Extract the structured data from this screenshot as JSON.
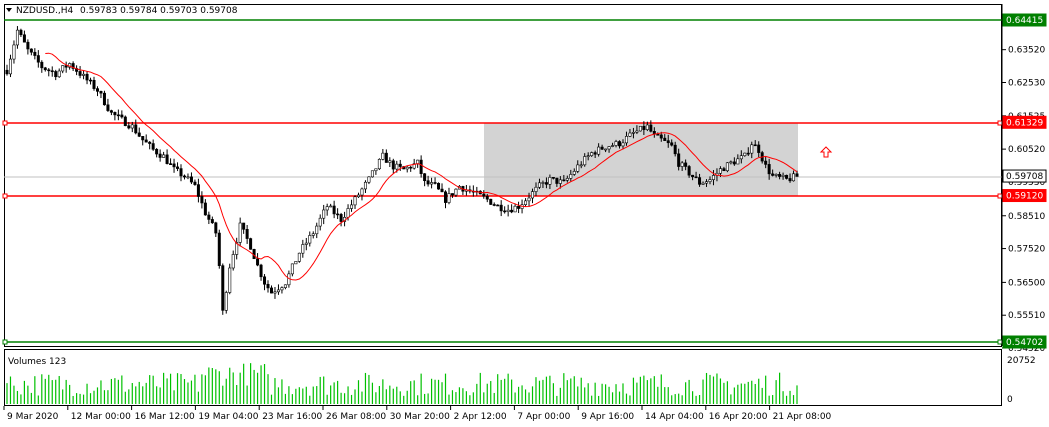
{
  "header": {
    "title": "NZDUSD.,H4",
    "quotes": "0.59783 0.59784 0.59703 0.59708"
  },
  "volumes_panel": {
    "title": "Volumes 123",
    "scale_top": "20752",
    "scale_bottom": "0"
  },
  "price_axis": {
    "ticks": [
      "0.63520",
      "0.62530",
      "0.61525",
      "0.60520",
      "0.59530",
      "0.58510",
      "0.57520",
      "0.56500",
      "0.55510",
      "0.54520"
    ]
  },
  "price_tags": [
    {
      "name": "tag-support-low",
      "value": "0.54702",
      "color": "#008000"
    },
    {
      "name": "tag-resistance-high",
      "value": "0.64415",
      "color": "#008000"
    },
    {
      "name": "tag-range-top",
      "value": "0.61329",
      "color": "#ff0000"
    },
    {
      "name": "tag-range-bottom",
      "value": "0.59120",
      "color": "#ff0000"
    },
    {
      "name": "tag-current-price",
      "value": "0.59708",
      "color": "#ffffff"
    }
  ],
  "time_axis": {
    "ticks": [
      "9 Mar 2020",
      "12 Mar 00:00",
      "16 Mar 12:00",
      "19 Mar 04:00",
      "23 Mar 16:00",
      "26 Mar 08:00",
      "30 Mar 20:00",
      "2 Apr 12:00",
      "7 Apr 00:00",
      "9 Apr 16:00",
      "14 Apr 04:00",
      "16 Apr 20:00",
      "21 Apr 08:00"
    ]
  },
  "colors": {
    "support_lines": "#008000",
    "range_lines": "#ff0000",
    "moving_average": "#ff0000",
    "range_box": "#d3d3d3",
    "candles": "#000000",
    "volumes": "#00c000",
    "arrow": "#ff0000"
  },
  "chart_data": {
    "type": "candlestick",
    "symbol": "NZDUSD.",
    "timeframe": "H4",
    "horizontal_levels": [
      0.64415,
      0.61329,
      0.5912,
      0.54702
    ],
    "current_price": 0.59708,
    "close_path": [
      [
        0,
        0.629
      ],
      [
        3,
        0.641
      ],
      [
        6,
        0.635
      ],
      [
        10,
        0.63
      ],
      [
        14,
        0.628
      ],
      [
        18,
        0.631
      ],
      [
        22,
        0.627
      ],
      [
        26,
        0.623
      ],
      [
        30,
        0.616
      ],
      [
        33,
        0.614
      ],
      [
        36,
        0.612
      ],
      [
        39,
        0.608
      ],
      [
        42,
        0.605
      ],
      [
        45,
        0.603
      ],
      [
        48,
        0.599
      ],
      [
        51,
        0.597
      ],
      [
        54,
        0.594
      ],
      [
        57,
        0.586
      ],
      [
        60,
        0.58
      ],
      [
        61,
        0.57
      ],
      [
        62,
        0.556
      ],
      [
        64,
        0.57
      ],
      [
        67,
        0.582
      ],
      [
        70,
        0.576
      ],
      [
        72,
        0.57
      ],
      [
        74,
        0.565
      ],
      [
        76,
        0.562
      ],
      [
        80,
        0.565
      ],
      [
        84,
        0.574
      ],
      [
        88,
        0.58
      ],
      [
        92,
        0.588
      ],
      [
        96,
        0.584
      ],
      [
        100,
        0.59
      ],
      [
        104,
        0.596
      ],
      [
        108,
        0.603
      ],
      [
        111,
        0.6
      ],
      [
        114,
        0.599
      ],
      [
        118,
        0.601
      ],
      [
        120,
        0.595
      ],
      [
        123,
        0.594
      ],
      [
        126,
        0.59
      ],
      [
        130,
        0.594
      ],
      [
        134,
        0.592
      ],
      [
        138,
        0.59
      ],
      [
        141,
        0.588
      ],
      [
        144,
        0.587
      ],
      [
        147,
        0.588
      ],
      [
        150,
        0.591
      ],
      [
        153,
        0.594
      ],
      [
        156,
        0.596
      ],
      [
        160,
        0.595
      ],
      [
        164,
        0.6
      ],
      [
        168,
        0.604
      ],
      [
        172,
        0.606
      ],
      [
        176,
        0.607
      ],
      [
        180,
        0.61
      ],
      [
        184,
        0.612
      ],
      [
        186,
        0.609
      ],
      [
        188,
        0.608
      ],
      [
        191,
        0.606
      ],
      [
        193,
        0.601
      ],
      [
        196,
        0.598
      ],
      [
        199,
        0.595
      ],
      [
        202,
        0.596
      ],
      [
        205,
        0.599
      ],
      [
        208,
        0.601
      ],
      [
        212,
        0.603
      ],
      [
        214,
        0.607
      ],
      [
        216,
        0.605
      ],
      [
        218,
        0.6
      ],
      [
        220,
        0.597
      ],
      [
        224,
        0.596
      ],
      [
        227,
        0.597
      ]
    ],
    "volumes_max": 20752,
    "annotations": [
      "grey range rectangle between 0.61329 and 0.59120 (2 Apr – 21 Apr)",
      "red up-arrow to the right of the range"
    ]
  }
}
